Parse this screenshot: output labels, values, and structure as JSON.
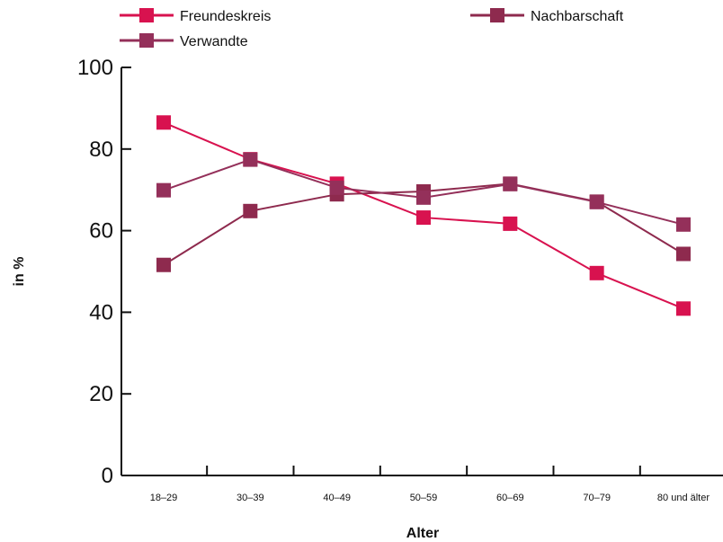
{
  "chart_data": {
    "type": "line",
    "title": "",
    "xlabel": "Alter",
    "ylabel": "in %",
    "categories": [
      "18–29",
      "30–39",
      "40–49",
      "50–59",
      "60–69",
      "70–79",
      "80 und älter"
    ],
    "ylim": [
      0,
      100
    ],
    "yticks": [
      "0",
      "20",
      "40",
      "60",
      "80",
      "100"
    ],
    "grid": false,
    "legend_position": "top",
    "series": [
      {
        "name": "Freundeskreis",
        "color": "#d8124f",
        "values": [
          86.5,
          77.5,
          71.5,
          63.2,
          61.7,
          49.6,
          40.9
        ]
      },
      {
        "name": "Nachbarschaft",
        "color": "#8e2a4e",
        "values": [
          51.6,
          64.8,
          68.9,
          69.6,
          71.5,
          67.1,
          54.3
        ]
      },
      {
        "name": "Verwandte",
        "color": "#94305a",
        "values": [
          69.9,
          77.4,
          70.5,
          68.1,
          71.4,
          67.0,
          61.5
        ]
      }
    ]
  }
}
